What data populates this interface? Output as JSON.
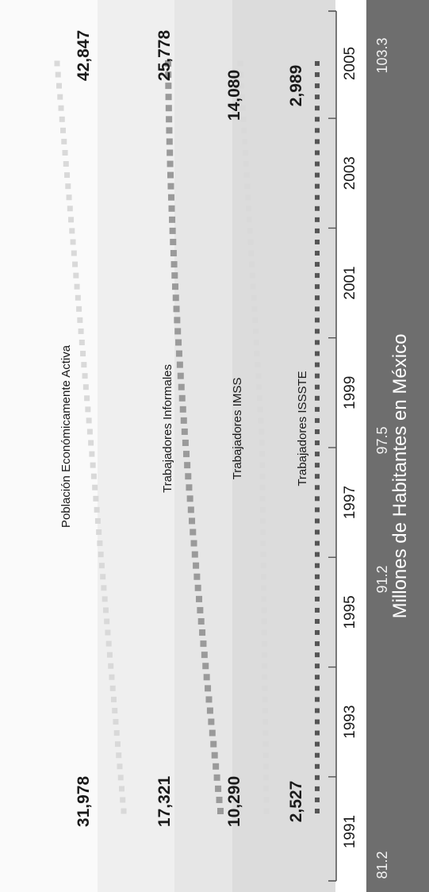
{
  "chart_data": {
    "type": "line",
    "orientation": "rotated-90-ccw",
    "x": [
      1991,
      2005
    ],
    "series": [
      {
        "name": "Población Económicamente Activa",
        "values": [
          31978,
          42847
        ],
        "start_label": "31,978",
        "end_label": "42,847",
        "color": "#d9d9d9"
      },
      {
        "name": "Trabajadores Informales",
        "values": [
          17321,
          25778
        ],
        "start_label": "17,321",
        "end_label": "25,778",
        "color": "#9a9a9a"
      },
      {
        "name": "Trabajadores IMSS",
        "values": [
          10290,
          14080
        ],
        "start_label": "10,290",
        "end_label": "14,080",
        "color": "#d9d9d9"
      },
      {
        "name": "Trabajadores ISSSTE",
        "values": [
          2527,
          2989
        ],
        "start_label": "2,527",
        "end_label": "2,989",
        "color": "#555555"
      }
    ],
    "x_ticks": [
      "1991",
      "1993",
      "1995",
      "1997",
      "1999",
      "2001",
      "2003",
      "2005"
    ],
    "population": {
      "label": "Millones de Habitantes en México",
      "values": [
        "81.2",
        "91.2",
        "97.5",
        "103.3"
      ]
    }
  }
}
